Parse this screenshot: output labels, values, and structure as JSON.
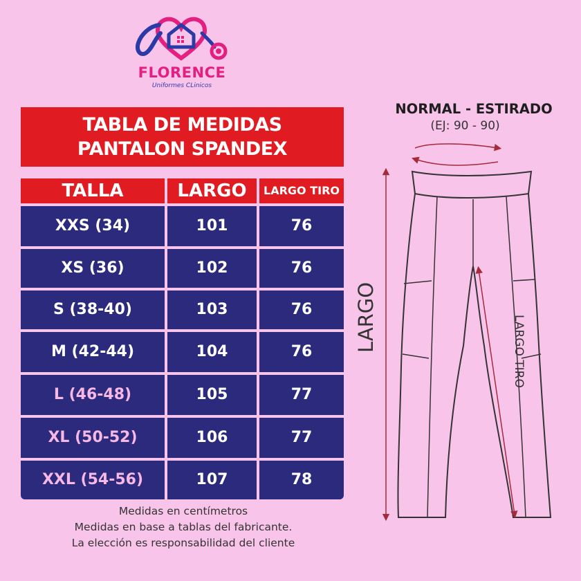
{
  "brand": {
    "name": "FLORENCE",
    "tagline": "Uniformes CLinicos",
    "colors": {
      "pink": "#e3207f",
      "blue": "#2a3aa6"
    }
  },
  "table": {
    "title_line1": "TABLA DE MEDIDAS",
    "title_line2": "PANTALON SPANDEX",
    "headers": [
      "TALLA",
      "LARGO",
      "LARGO TIRO"
    ],
    "rows": [
      {
        "talla": "XXS (34)",
        "largo": "101",
        "tiro": "76"
      },
      {
        "talla": "XS (36)",
        "largo": "102",
        "tiro": "76"
      },
      {
        "talla": "S (38-40)",
        "largo": "103",
        "tiro": "76"
      },
      {
        "talla": "M (42-44)",
        "largo": "104",
        "tiro": "76"
      },
      {
        "talla": "L (46-48)",
        "largo": "105",
        "tiro": "77"
      },
      {
        "talla": "XL (50-52)",
        "largo": "106",
        "tiro": "77"
      },
      {
        "talla": "XXL (54-56)",
        "largo": "107",
        "tiro": "78"
      }
    ],
    "colors": {
      "header": "#e11b22",
      "row": "#2b2a7d"
    }
  },
  "notes": [
    "Medidas en centímetros",
    "Medidas en base a tablas del fabricante.",
    "La elección es responsabilidad del cliente"
  ],
  "diagram": {
    "title": "NORMAL - ESTIRADO",
    "subtitle": "(EJ: 90 - 90)",
    "label_largo": "LARGO",
    "label_tiro": "LARGO TIRO"
  }
}
